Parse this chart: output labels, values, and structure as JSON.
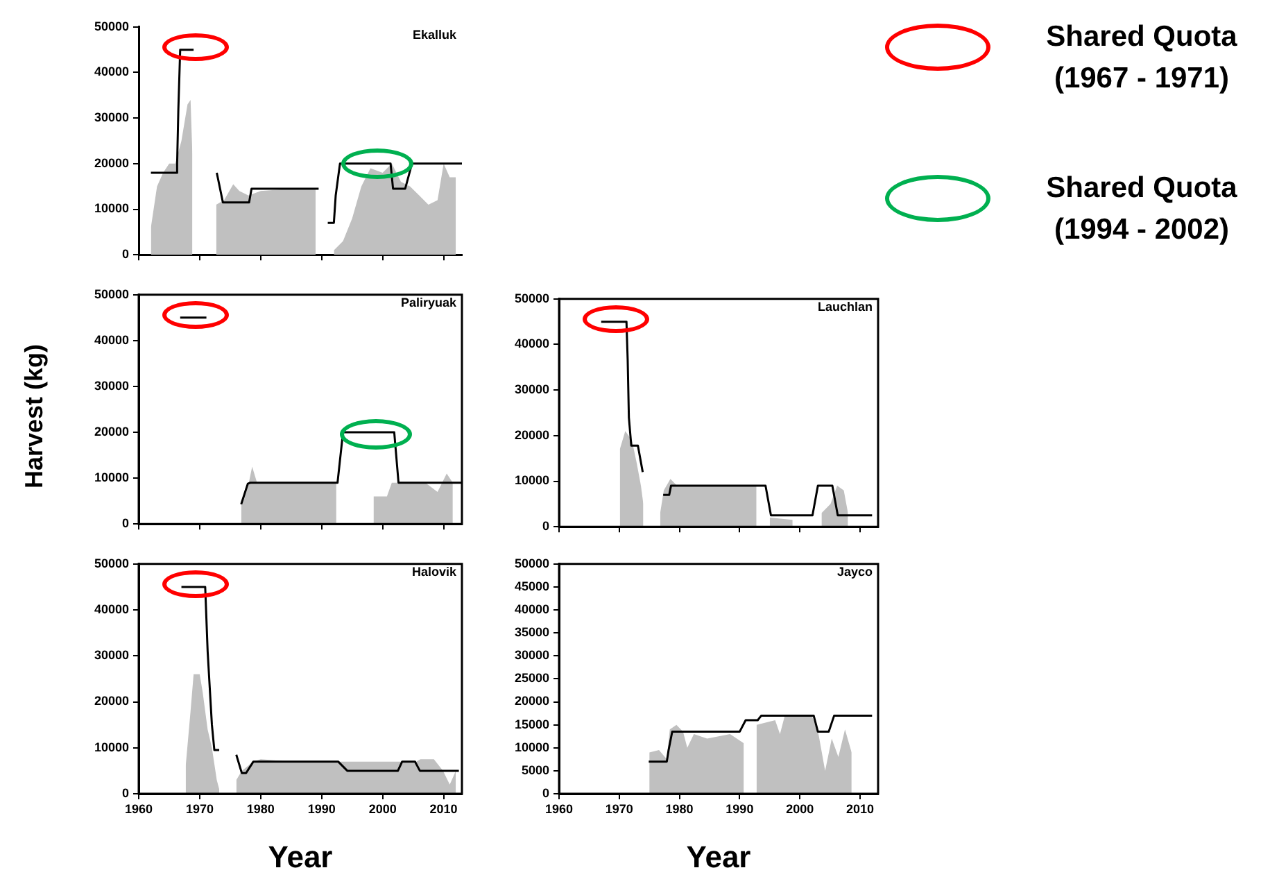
{
  "chart_data": [
    {
      "type": "area",
      "title": "Ekalluk",
      "annotations": [
        "Shared Quota (1967 - 1971)",
        "Shared Quota (1994 - 2002)"
      ],
      "xlim": [
        1960,
        2013
      ],
      "xticks": [
        1960,
        1970,
        1980,
        1990,
        2000,
        2010
      ],
      "ylim": [
        0,
        50000
      ],
      "yticks": [
        0,
        10000,
        20000,
        30000,
        40000,
        50000
      ],
      "tick_labels": "y",
      "grid": false,
      "series": [
        {
          "type": "area",
          "color": "#c0c0c0",
          "x": [
            1962,
            1963,
            1964,
            1965,
            1966,
            1967,
            1968,
            1968.5,
            1968.8,
            1969,
            1972.7,
            1974,
            1975.5,
            1976.5,
            1978,
            1980,
            1985,
            1989,
            1990,
            1992,
            1993.5,
            1995,
            1996.5,
            1998,
            2000,
            2001.5,
            2003,
            2004.5,
            2006,
            2007.5,
            2009,
            2010,
            2011,
            2012
          ],
          "values": [
            6000,
            15000,
            18000,
            20000,
            20000,
            25000,
            33000,
            34000,
            22000,
            null,
            11000,
            12000,
            15500,
            14000,
            13000,
            14000,
            14500,
            14500,
            null,
            1000,
            3000,
            8000,
            15000,
            19000,
            18000,
            20000,
            16000,
            15000,
            13000,
            11000,
            12000,
            20000,
            17000,
            17000
          ]
        },
        {
          "type": "line",
          "color": "#000000",
          "x": [
            1962,
            1966.2,
            1966.3,
            1966.5,
            1966.8,
            1969,
            1970,
            1972.8,
            1973.8,
            1978.1,
            1978.5,
            1989.5,
            1990,
            1991,
            1992,
            1992.3,
            1993,
            2001.3,
            2001.7,
            2003.7,
            2004.8,
            2013
          ],
          "values": [
            18000,
            18000,
            20000,
            32000,
            45000,
            45000,
            null,
            18000,
            11500,
            11500,
            14500,
            14500,
            null,
            7000,
            7000,
            13000,
            20000,
            20000,
            14500,
            14500,
            20000,
            20000
          ]
        }
      ]
    },
    {
      "type": "area",
      "title": "Paliryuak",
      "ylabel": "Harvest (kg)",
      "xlim": [
        1960,
        2013
      ],
      "xticks": [
        1960,
        1970,
        1980,
        1990,
        2000,
        2010
      ],
      "ylim": [
        0,
        50000
      ],
      "yticks": [
        0,
        10000,
        20000,
        30000,
        40000,
        50000
      ],
      "tick_labels": "y",
      "grid": false,
      "series": [
        {
          "type": "area",
          "color": "#c0c0c0",
          "x": [
            1976.8,
            1977.9,
            1978.6,
            1979.4,
            1985,
            1992.4,
            1993,
            1998.5,
            2000.7,
            2001.5,
            2007,
            2009,
            2010.5,
            2011.5
          ],
          "values": [
            4000,
            8000,
            12500,
            9000,
            9000,
            9000,
            null,
            6000,
            6000,
            9000,
            9000,
            7000,
            11000,
            9000
          ]
        },
        {
          "type": "line",
          "color": "#000000",
          "x": [
            1966.8,
            1971.1,
            1972,
            1976.8,
            1977.9,
            1978.3,
            1992.6,
            1993.5,
            2001.9,
            2002.6,
            2013
          ],
          "values": [
            45000,
            45000,
            null,
            4300,
            8800,
            9000,
            9000,
            20000,
            20000,
            9000,
            9000
          ]
        }
      ]
    },
    {
      "type": "area",
      "title": "Lauchlan",
      "xlim": [
        1960,
        2013
      ],
      "xticks": [
        1960,
        1970,
        1980,
        1990,
        2000,
        2010
      ],
      "ylim": [
        0,
        50000
      ],
      "yticks": [
        0,
        10000,
        20000,
        30000,
        40000,
        50000
      ],
      "tick_labels": "y",
      "grid": false,
      "series": [
        {
          "type": "area",
          "color": "#c0c0c0",
          "x": [
            1970.1,
            1971,
            1972.1,
            1972.9,
            1973.6,
            1974,
            1975,
            1976.8,
            1977.4,
            1978.5,
            1979.6,
            1985,
            1992.8,
            1993.5,
            1995,
            1998.8,
            2002.5,
            2003.6,
            2005.1,
            2006.2,
            2007.3,
            2008
          ],
          "values": [
            17000,
            21000,
            19000,
            14000,
            9000,
            5000,
            null,
            3000,
            8000,
            10500,
            9000,
            9000,
            9000,
            null,
            2000,
            1500,
            null,
            3000,
            5000,
            9000,
            8000,
            3000
          ]
        },
        {
          "type": "line",
          "color": "#000000",
          "x": [
            1967,
            1971.2,
            1971.4,
            1971.6,
            1972,
            1973.1,
            1973.9,
            1975,
            1977.3,
            1978.3,
            1978.6,
            1994.3,
            1995.2,
            2002.1,
            2003,
            2005.4,
            2006.3,
            2012
          ],
          "values": [
            45000,
            45000,
            36700,
            24000,
            17800,
            17800,
            12000,
            null,
            7000,
            7000,
            9000,
            9000,
            2500,
            2500,
            9000,
            9000,
            2500,
            2500
          ]
        }
      ]
    },
    {
      "type": "area",
      "title": "Halovik",
      "xlabel": "Year",
      "xlim": [
        1960,
        2013
      ],
      "xticks": [
        1960,
        1970,
        1980,
        1990,
        2000,
        2010
      ],
      "ylim": [
        0,
        50000
      ],
      "yticks": [
        0,
        10000,
        20000,
        30000,
        40000,
        50000
      ],
      "grid": false,
      "series": [
        {
          "type": "area",
          "color": "#c0c0c0",
          "x": [
            1967.7,
            1968.5,
            1969,
            1970,
            1970.5,
            1971.3,
            1972,
            1972.8,
            1973.2,
            1974,
            1976,
            1976.9,
            1978.8,
            1980,
            1985,
            1992.7,
            2005.5,
            2006.2,
            2008.4,
            2009.9,
            2011,
            2012
          ],
          "values": [
            6000,
            18000,
            26000,
            26000,
            22000,
            14000,
            10000,
            3000,
            1000,
            null,
            3000,
            5000,
            7000,
            7500,
            7000,
            7000,
            7000,
            7500,
            7500,
            5000,
            2000,
            5000
          ]
        },
        {
          "type": "line",
          "color": "#000000",
          "x": [
            1967,
            1970.9,
            1971.3,
            1972,
            1972.4,
            1973.2,
            1974,
            1976,
            1976.9,
            1977.6,
            1978.8,
            1992.7,
            1994.2,
            2002.5,
            2003.2,
            2005.3,
            2006.1,
            2012.5
          ],
          "values": [
            45000,
            45000,
            31000,
            15000,
            9500,
            9500,
            null,
            8500,
            4500,
            4500,
            7000,
            7000,
            5000,
            5000,
            7000,
            7000,
            5000,
            5000
          ]
        }
      ]
    },
    {
      "type": "area",
      "title": "Jayco",
      "xlabel": "Year",
      "xlim": [
        1960,
        2013
      ],
      "xticks": [
        1960,
        1970,
        1980,
        1990,
        2000,
        2010
      ],
      "ylim": [
        0,
        50000
      ],
      "yticks": [
        0,
        5000,
        10000,
        15000,
        20000,
        25000,
        30000,
        35000,
        40000,
        45000,
        50000
      ],
      "grid": false,
      "series": [
        {
          "type": "area",
          "color": "#c0c0c0",
          "x": [
            1975,
            1976.6,
            1977.9,
            1978.4,
            1979.5,
            1980.6,
            1981.3,
            1982.4,
            1984.6,
            1988.4,
            1990.7,
            1991.5,
            1992.8,
            1995.9,
            1996.7,
            1997.5,
            2002,
            2003.1,
            2004.2,
            2005.3,
            2006.4,
            2007.5,
            2008.6
          ],
          "values": [
            9000,
            9500,
            7500,
            14000,
            15000,
            13500,
            10000,
            13000,
            12000,
            13000,
            11000,
            null,
            15000,
            16000,
            13000,
            17000,
            17000,
            13000,
            5000,
            12000,
            8000,
            14000,
            9000
          ]
        },
        {
          "type": "line",
          "color": "#000000",
          "x": [
            1974.9,
            1977.9,
            1978.2,
            1978.8,
            1990,
            1991,
            1993,
            1993.6,
            2002.3,
            2003,
            2004.8,
            2005.7,
            2012
          ],
          "values": [
            7000,
            7000,
            9500,
            13500,
            13500,
            16000,
            16000,
            17000,
            17000,
            13500,
            13500,
            17000,
            17000
          ]
        }
      ]
    }
  ]
}
